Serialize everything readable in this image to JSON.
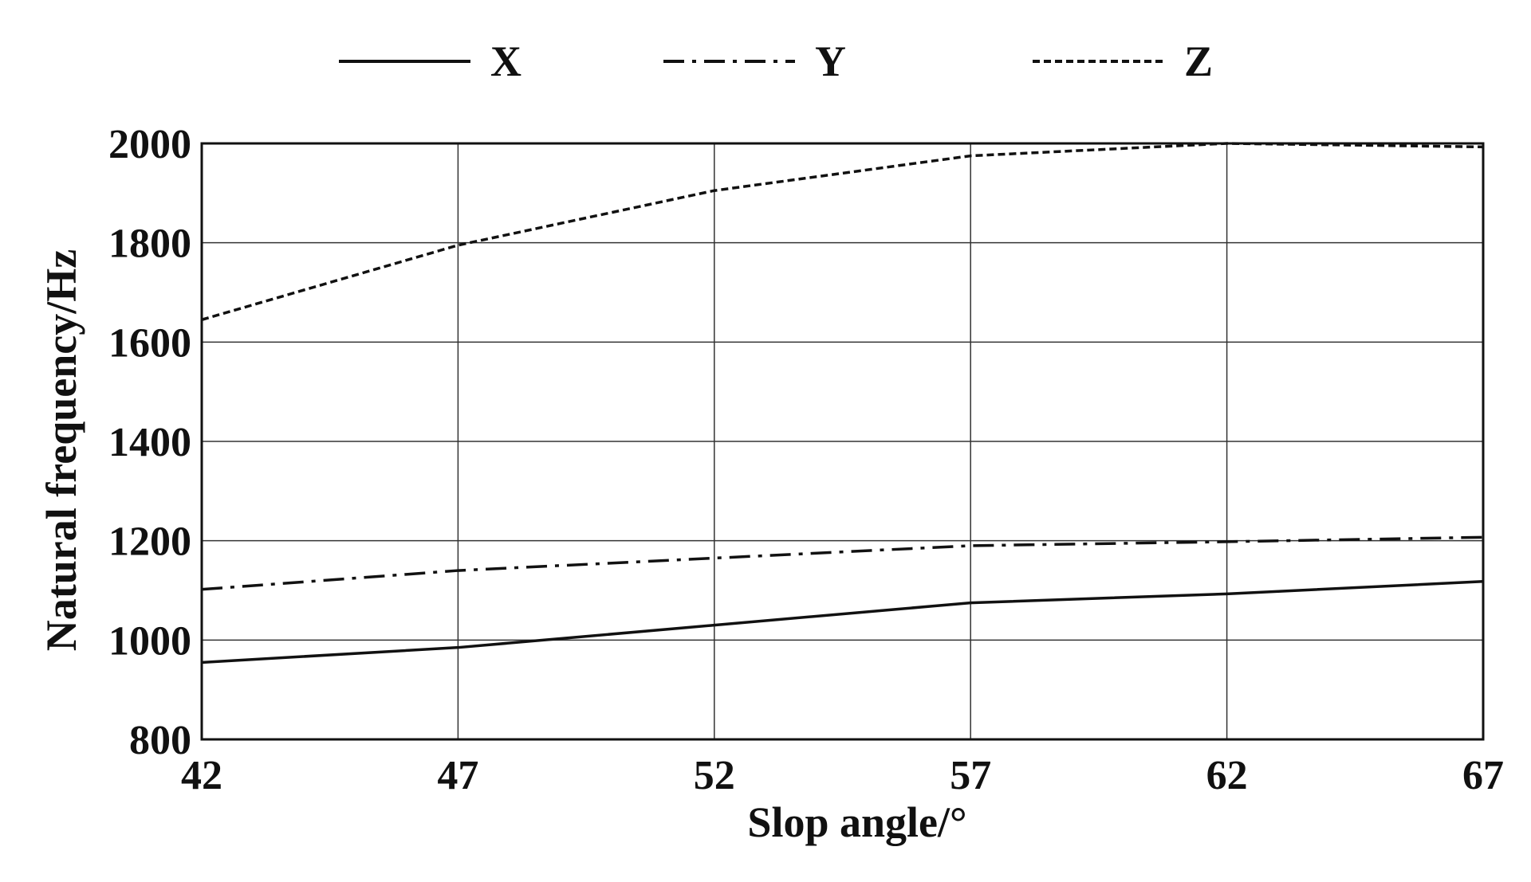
{
  "chart_data": {
    "type": "line",
    "title": "",
    "xlabel": "Slop angle/°",
    "ylabel": "Natural frequency/Hz",
    "x": [
      42,
      47,
      52,
      57,
      62,
      67
    ],
    "x_ticks": [
      "42",
      "47",
      "52",
      "57",
      "62",
      "67"
    ],
    "y_ticks": [
      "800",
      "1000",
      "1200",
      "1400",
      "1600",
      "1800",
      "2000"
    ],
    "xlim": [
      42,
      67
    ],
    "ylim": [
      800,
      2000
    ],
    "grid": true,
    "legend_position": "top",
    "series": [
      {
        "name": "X",
        "style": "solid",
        "color": "#111111",
        "values": [
          955,
          985,
          1030,
          1075,
          1093,
          1118
        ]
      },
      {
        "name": "Y",
        "style": "dash-dot",
        "color": "#111111",
        "values": [
          1102,
          1140,
          1165,
          1190,
          1198,
          1207
        ]
      },
      {
        "name": "Z",
        "style": "dotted",
        "color": "#111111",
        "values": [
          1645,
          1795,
          1905,
          1975,
          2000,
          1993
        ]
      }
    ]
  }
}
